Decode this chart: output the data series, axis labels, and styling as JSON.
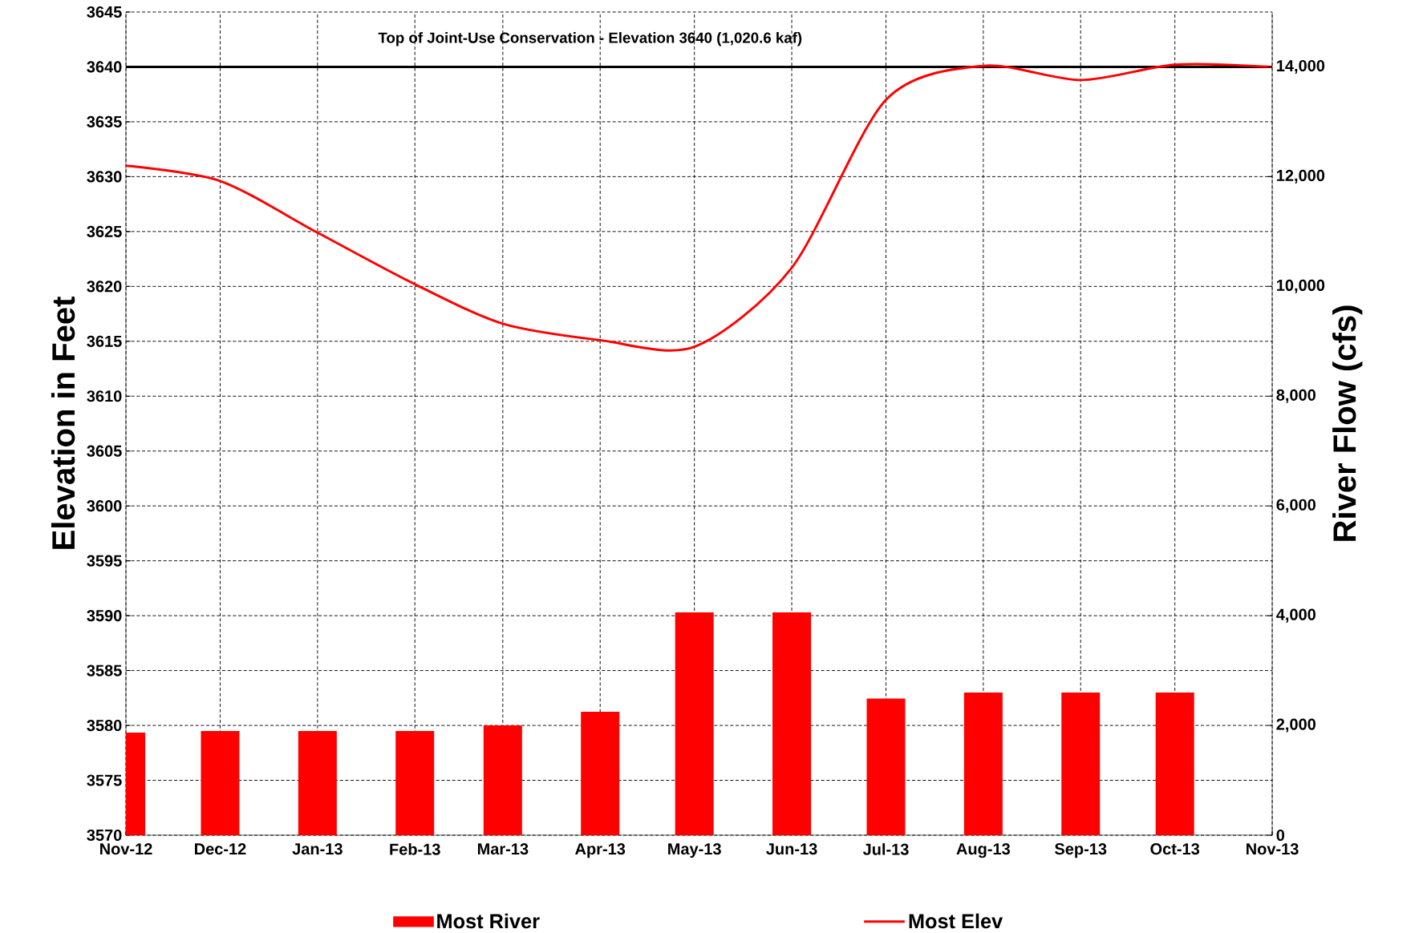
{
  "chart_data": {
    "type": "bar",
    "xlim": [
      "2012-11",
      "2013-11"
    ],
    "xticks": [
      {
        "value": "2012-11",
        "label": "Nov-12"
      },
      {
        "value": "2012-12",
        "label": "Dec-12"
      },
      {
        "value": "2013-01",
        "label": "Jan-13"
      },
      {
        "value": "2013-02",
        "label": "Feb-13"
      },
      {
        "value": "2013-03",
        "label": "Mar-13"
      },
      {
        "value": "2013-04",
        "label": "Apr-13"
      },
      {
        "value": "2013-05",
        "label": "May-13"
      },
      {
        "value": "2013-06",
        "label": "Jun-13"
      },
      {
        "value": "2013-07",
        "label": "Jul-13"
      },
      {
        "value": "2013-08",
        "label": "Aug-13"
      },
      {
        "value": "2013-09",
        "label": "Sep-13"
      },
      {
        "value": "2013-10",
        "label": "Oct-13"
      },
      {
        "value": "2013-11",
        "label": "Nov-13"
      }
    ],
    "ylim": [
      3570,
      3645
    ],
    "yticks": [
      3570,
      3575,
      3580,
      3585,
      3590,
      3595,
      3600,
      3605,
      3610,
      3615,
      3620,
      3625,
      3630,
      3635,
      3640,
      3645
    ],
    "y2lim": [
      0,
      15000
    ],
    "y2ticks": [
      0,
      {
        "value": 2000,
        "label": "2,000"
      },
      {
        "value": 4000,
        "label": "4,000"
      },
      {
        "value": 6000,
        "label": "6,000"
      },
      {
        "value": 8000,
        "label": "8,000"
      },
      {
        "value": 10000,
        "label": "10,000"
      },
      {
        "value": 12000,
        "label": "12,000"
      },
      {
        "value": 14000,
        "label": "14,000"
      }
    ],
    "ylabel": "Elevation in Feet",
    "y2label": "River Flow (cfs)",
    "grid": true,
    "legend": "bottom",
    "marker": "none",
    "line_style": "solid",
    "ref_lines": [
      {
        "axis": "y",
        "value": 3640,
        "label": "Top of Joint-Use Conservation - Elevation 3640 (1,020.6 kaf)",
        "color": "#000000"
      }
    ],
    "series": [
      {
        "name": "Most River",
        "axis": "y2",
        "color": "#ff0000",
        "x": [
          "2012-11",
          "2012-12",
          "2013-01",
          "2013-02",
          "2013-03",
          "2013-04",
          "2013-05",
          "2013-06",
          "2013-07",
          "2013-08",
          "2013-09",
          "2013-10"
        ],
        "values": [
          1870,
          1900,
          1900,
          1900,
          2000,
          2250,
          4060,
          4060,
          2490,
          2600,
          2600,
          2600
        ]
      },
      {
        "name": "Most Elev",
        "type": "line",
        "color": "#ff0000",
        "x": [
          "2012-11",
          "2012-12",
          "2013-01",
          "2013-02",
          "2013-03",
          "2013-04",
          "2013-05",
          "2013-06",
          "2013-07",
          "2013-08",
          "2013-09",
          "2013-10",
          "2013-11"
        ],
        "values": [
          3631,
          3629.6,
          3624.9,
          3620.2,
          3616.6,
          3615.1,
          3614.5,
          3621.7,
          3637,
          3640.1,
          3638.8,
          3640.2,
          3640
        ]
      }
    ]
  }
}
